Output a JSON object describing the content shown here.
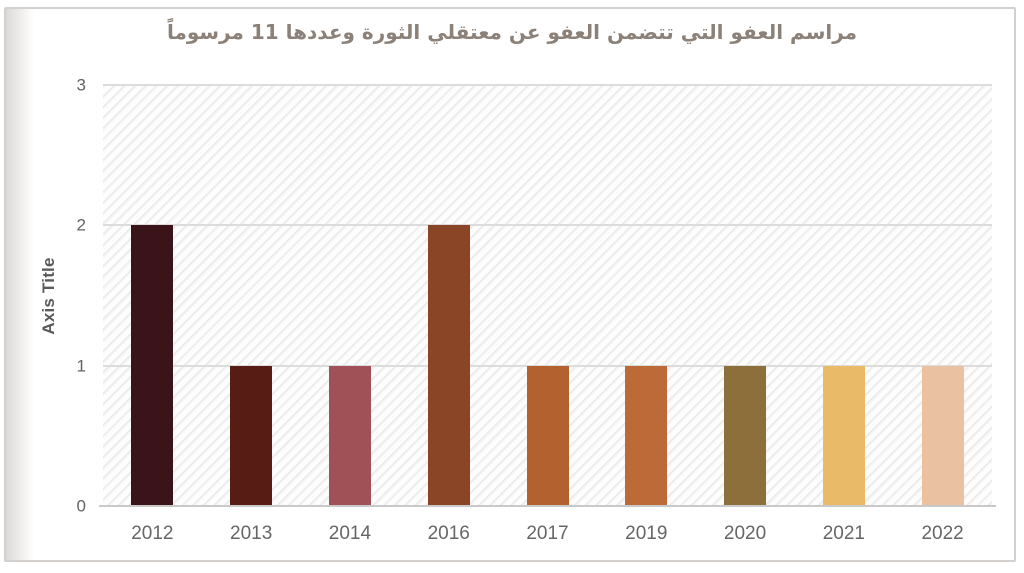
{
  "page": {
    "kind": "static-report-page-with-chart"
  },
  "chart_data": {
    "type": "bar",
    "title": "مراسم العفو التي تتضمن العفو عن معتقلي الثورة وعددها 11 مرسوماً",
    "categories": [
      "2012",
      "2013",
      "2014",
      "2016",
      "2017",
      "2019",
      "2020",
      "2021",
      "2022"
    ],
    "values": [
      2,
      1,
      1,
      2,
      1,
      1,
      1,
      1,
      1
    ],
    "bar_colors": [
      "#3a1418",
      "#571c14",
      "#a05157",
      "#8a4526",
      "#b2612f",
      "#bc6a38",
      "#8d6f3b",
      "#e9ba67",
      "#ebc2a1"
    ],
    "xlabel": "",
    "ylabel": "Axis Title",
    "ylim": [
      0,
      3
    ],
    "yticks": [
      0,
      1,
      2,
      3
    ],
    "grid": "horizontal",
    "legend": "none",
    "plot_background": "diagonal-hatch"
  },
  "colors": {
    "title_text": "#8b8178",
    "axis_text": "#636363",
    "axis_title_text": "#5a5a5a",
    "gridline": "#dcdcdc",
    "axis_line": "#c9c9c9",
    "frame_border": "#d3d0cd"
  }
}
